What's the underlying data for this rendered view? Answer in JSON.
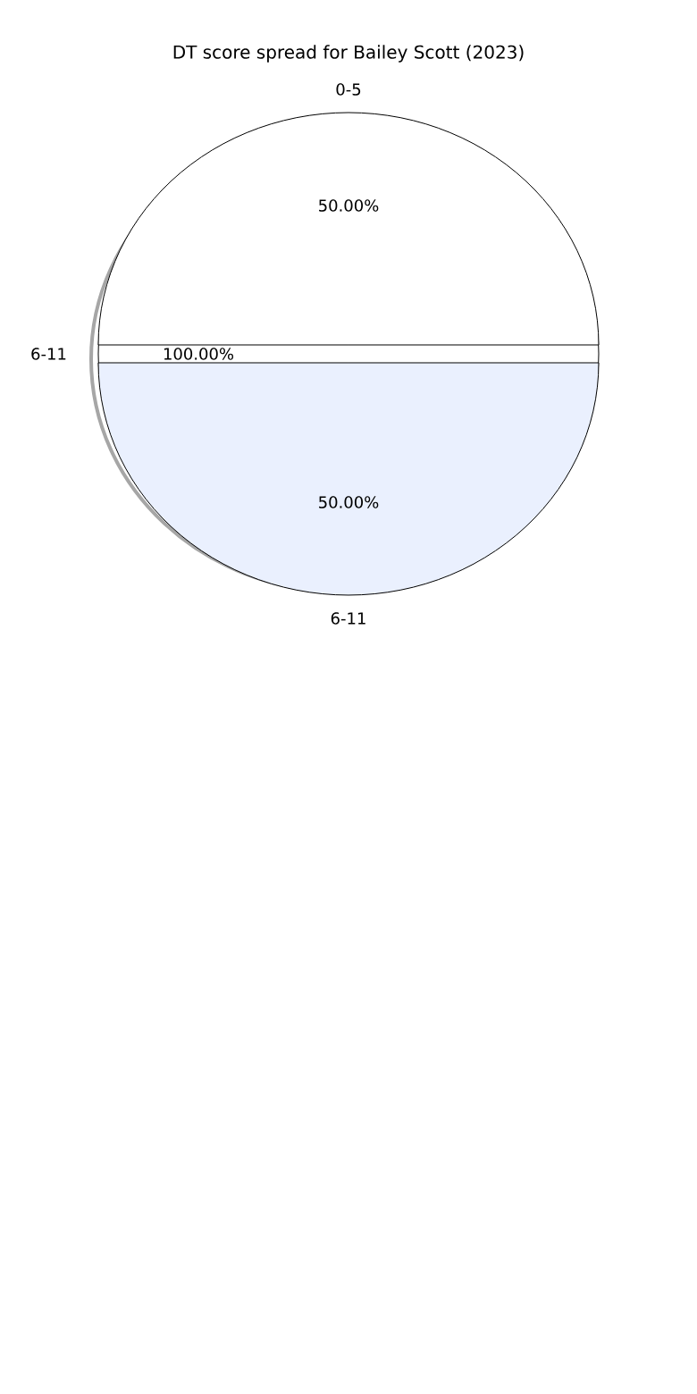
{
  "chart_data": [
    {
      "type": "pie",
      "title": "DT score spread for Bailey Scott (2023)",
      "categories": [
        "0-5",
        "6-11"
      ],
      "values": [
        50,
        50
      ],
      "colors": [
        "#ffffff",
        "#eaf0fe"
      ],
      "value_labels": [
        "50.00%",
        "50.00%"
      ]
    },
    {
      "type": "pie",
      "categories": [
        "6-11"
      ],
      "values": [
        100
      ],
      "colors": [
        "#ffffff"
      ],
      "value_labels": [
        "100.00%"
      ]
    }
  ]
}
